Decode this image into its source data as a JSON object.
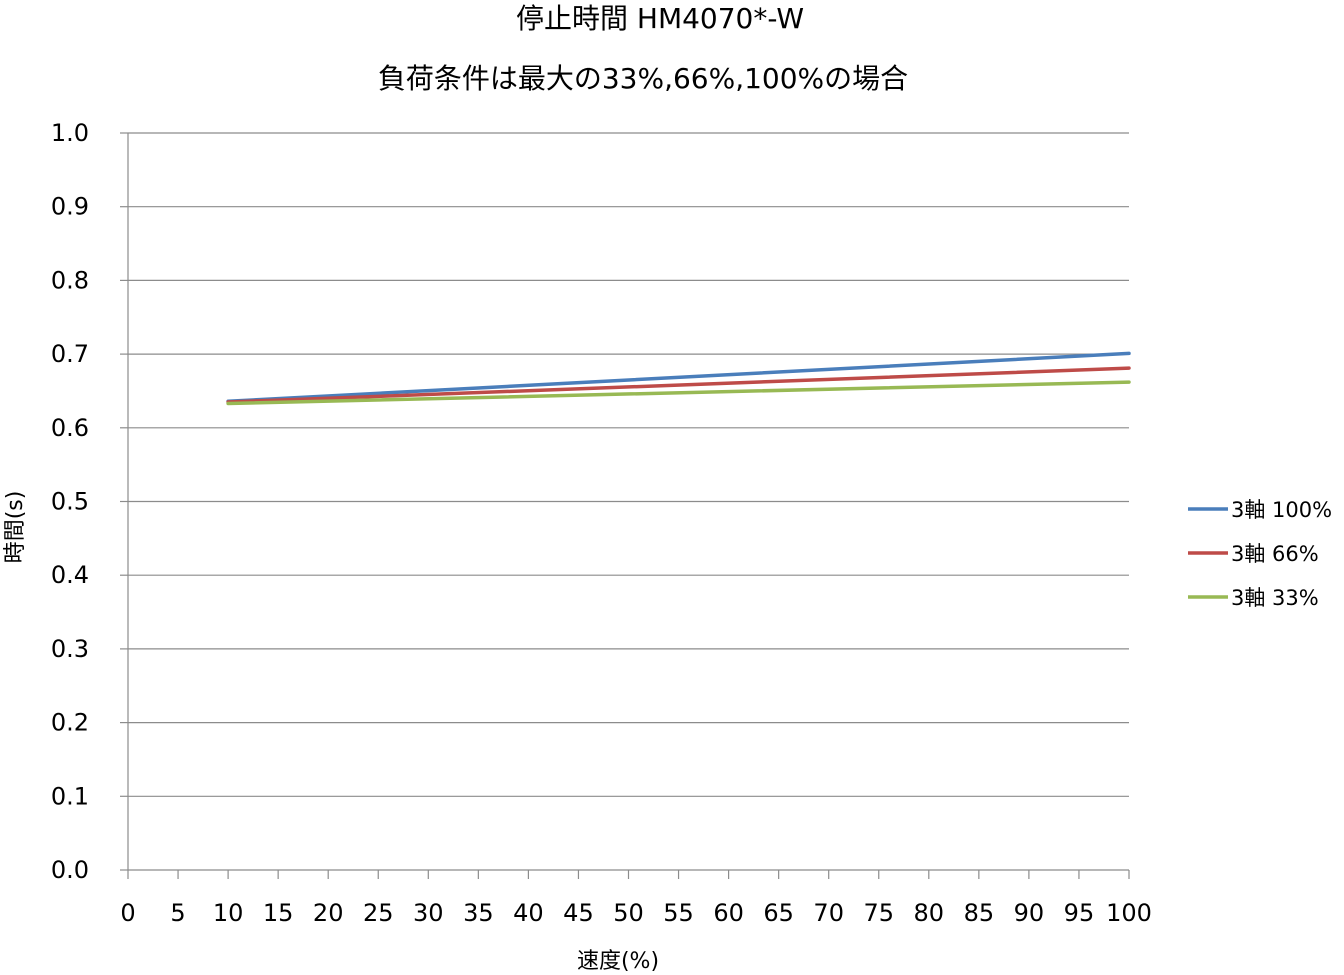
{
  "chart_data": {
    "type": "line",
    "title": "停止時間 HM4070*-W",
    "subtitle": "負荷条件は最大の33%,66%,100%の場合",
    "xlabel": "速度(%)",
    "ylabel": "時間(s)",
    "xlim": [
      0,
      100
    ],
    "ylim": [
      0,
      1.0
    ],
    "x_ticks": [
      "0",
      "5",
      "10",
      "15",
      "20",
      "25",
      "30",
      "35",
      "40",
      "45",
      "50",
      "55",
      "60",
      "65",
      "70",
      "75",
      "80",
      "85",
      "90",
      "95",
      "100"
    ],
    "y_ticks": [
      "0.0",
      "0.1",
      "0.2",
      "0.3",
      "0.4",
      "0.5",
      "0.6",
      "0.7",
      "0.8",
      "0.9",
      "1.0"
    ],
    "grid": "horizontal",
    "legend_position": "right",
    "series": [
      {
        "name": "3軸 100%",
        "color": "#4a7ebb",
        "x": [
          10,
          100
        ],
        "y": [
          0.636,
          0.701
        ]
      },
      {
        "name": "3軸 66%",
        "color": "#be4b48",
        "x": [
          10,
          100
        ],
        "y": [
          0.635,
          0.681
        ]
      },
      {
        "name": "3軸 33%",
        "color": "#98b954",
        "x": [
          10,
          100
        ],
        "y": [
          0.633,
          0.662
        ]
      }
    ]
  }
}
